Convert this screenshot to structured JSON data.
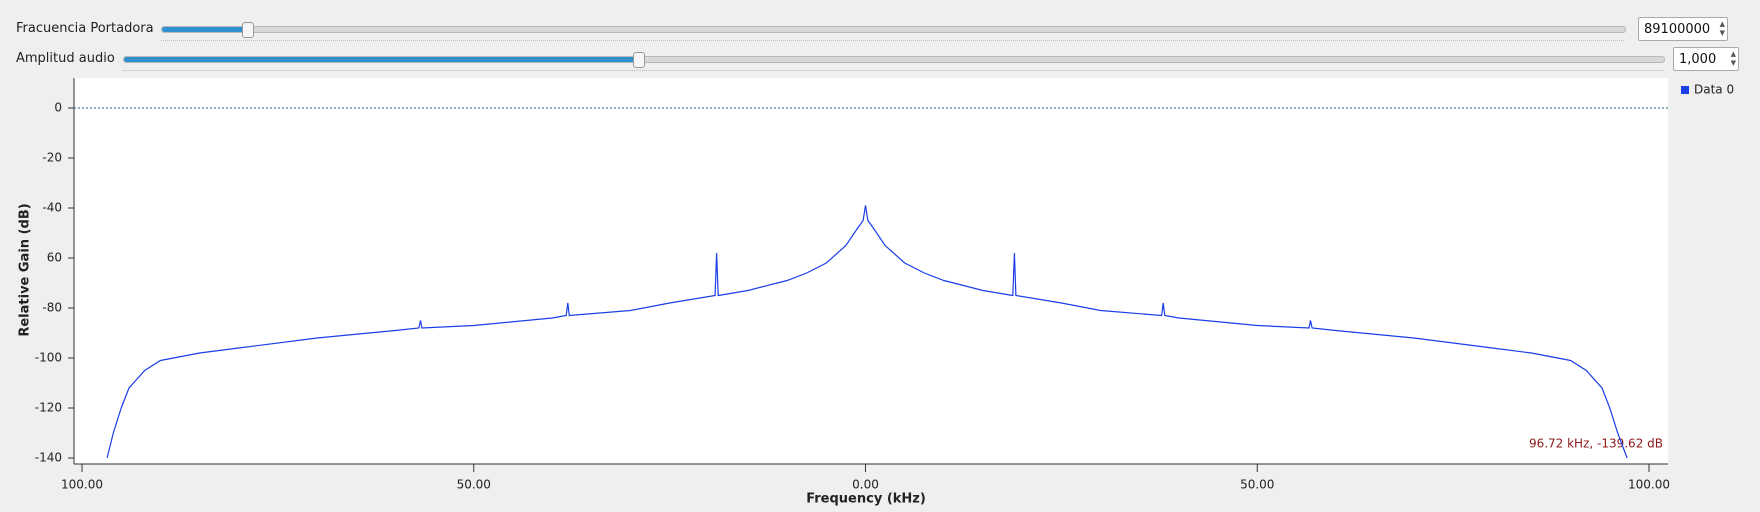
{
  "controls": [
    {
      "label": "Fracuencia Portadora",
      "value": "89100000"
    },
    {
      "label": "Amplitud audio",
      "value": "1,000"
    }
  ],
  "chart_data": {
    "type": "line",
    "xlabel": "Frequency (kHz)",
    "ylabel": "Relative Gain (dB)",
    "annotation": "96.72 kHz, -139.62 dB",
    "x": [
      -96.8,
      -96,
      -95,
      -94,
      -92,
      -90,
      -85,
      -80,
      -70,
      -60,
      -57,
      -56.8,
      -56.6,
      -50,
      -40,
      -38.2,
      -38,
      -37.8,
      -30,
      -25,
      -19.2,
      -19,
      -18.8,
      -15,
      -10,
      -7.5,
      -5,
      -2.5,
      -1,
      -0.3,
      0,
      0.3,
      1,
      2.5,
      5,
      7.5,
      10,
      15,
      18.8,
      19,
      19.2,
      25,
      30,
      37.8,
      38,
      38.2,
      40,
      50,
      56.6,
      56.8,
      57,
      60,
      70,
      80,
      85,
      90,
      92,
      94,
      95,
      96,
      97.2
    ],
    "series": [
      {
        "name": "Data 0",
        "color": "#1a3ee8",
        "values": [
          -140,
          -130,
          -120,
          -112,
          -105,
          -101,
          -98,
          -96,
          -92,
          -89,
          -88,
          -85,
          -88,
          -87,
          -84,
          -83,
          -78,
          -83,
          -81,
          -78,
          -75,
          -58,
          -75,
          -73,
          -69,
          -66,
          -62,
          -55,
          -48,
          -45,
          -39,
          -45,
          -48,
          -55,
          -62,
          -66,
          -69,
          -73,
          -75,
          -58,
          -75,
          -78,
          -81,
          -83,
          -78,
          -83,
          -84,
          -87,
          -88,
          -85,
          -88,
          -89,
          -92,
          -96,
          -98,
          -101,
          -105,
          -112,
          -120,
          -130,
          -140
        ]
      }
    ],
    "xlim": [
      -100,
      100
    ],
    "xticks": [
      {
        "value": -100,
        "label": "100.00"
      },
      {
        "value": -50,
        "label": "50.00"
      },
      {
        "value": 0,
        "label": "0.00"
      },
      {
        "value": 50,
        "label": "50.00"
      },
      {
        "value": 100,
        "label": "100.00"
      }
    ],
    "ylim": [
      -141.6,
      11.6
    ],
    "yticks": [
      0,
      -20,
      -40,
      {
        "value": -60,
        "label": "60"
      },
      -80,
      -100,
      -120,
      -140
    ],
    "reference_line": 0,
    "grid": false,
    "legend": "top-right"
  }
}
